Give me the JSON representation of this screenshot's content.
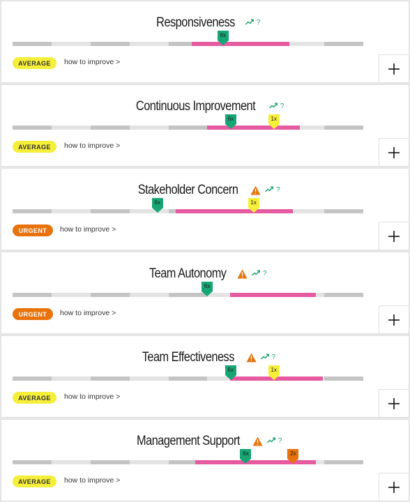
{
  "improve_label": "how to improve >",
  "colors": {
    "range": "#e65aa0",
    "marker_green": "#17a574",
    "marker_yellow": "#f5ef3a",
    "marker_orange": "#e8720c",
    "average": "#f5ef3a",
    "urgent": "#e8720c"
  },
  "cards": [
    {
      "title": "Responsiveness",
      "warning": false,
      "trend_icon": "trend-up-icon",
      "help": "?",
      "range": [
        0.51,
        0.79
      ],
      "markers": [
        {
          "label": "6x",
          "pos": 0.6,
          "color": "green"
        }
      ],
      "status": "AVERAGE",
      "status_type": "average"
    },
    {
      "title": "Continuous Improvement",
      "warning": false,
      "trend_icon": "trend-up-icon",
      "help": "?",
      "range": [
        0.555,
        0.82
      ],
      "markers": [
        {
          "label": "6x",
          "pos": 0.622,
          "color": "green"
        },
        {
          "label": "1x",
          "pos": 0.745,
          "color": "yellow"
        }
      ],
      "status": "AVERAGE",
      "status_type": "average"
    },
    {
      "title": "Stakeholder Concern",
      "warning": true,
      "trend_icon": "trend-up-icon",
      "help": "?",
      "range": [
        0.465,
        0.8
      ],
      "markers": [
        {
          "label": "6x",
          "pos": 0.413,
          "color": "green"
        },
        {
          "label": "1x",
          "pos": 0.687,
          "color": "yellow"
        }
      ],
      "status": "URGENT",
      "status_type": "urgent"
    },
    {
      "title": "Team Autonomy",
      "warning": true,
      "trend_icon": "trend-up-icon",
      "help": "?",
      "range": [
        0.62,
        0.865
      ],
      "markers": [
        {
          "label": "6x",
          "pos": 0.555,
          "color": "green"
        }
      ],
      "status": "URGENT",
      "status_type": "urgent"
    },
    {
      "title": "Team Effectiveness",
      "warning": true,
      "trend_icon": "trend-up-icon",
      "help": "?",
      "range": [
        0.62,
        0.885
      ],
      "markers": [
        {
          "label": "6x",
          "pos": 0.622,
          "color": "green"
        },
        {
          "label": "1x",
          "pos": 0.745,
          "color": "yellow"
        }
      ],
      "status": "AVERAGE",
      "status_type": "average"
    },
    {
      "title": "Management Support",
      "warning": true,
      "trend_icon": "trend-up-icon",
      "help": "?",
      "range": [
        0.52,
        0.865
      ],
      "markers": [
        {
          "label": "6x",
          "pos": 0.665,
          "color": "green"
        },
        {
          "label": "2x",
          "pos": 0.8,
          "color": "orange"
        }
      ],
      "status": "AVERAGE",
      "status_type": "average"
    }
  ]
}
